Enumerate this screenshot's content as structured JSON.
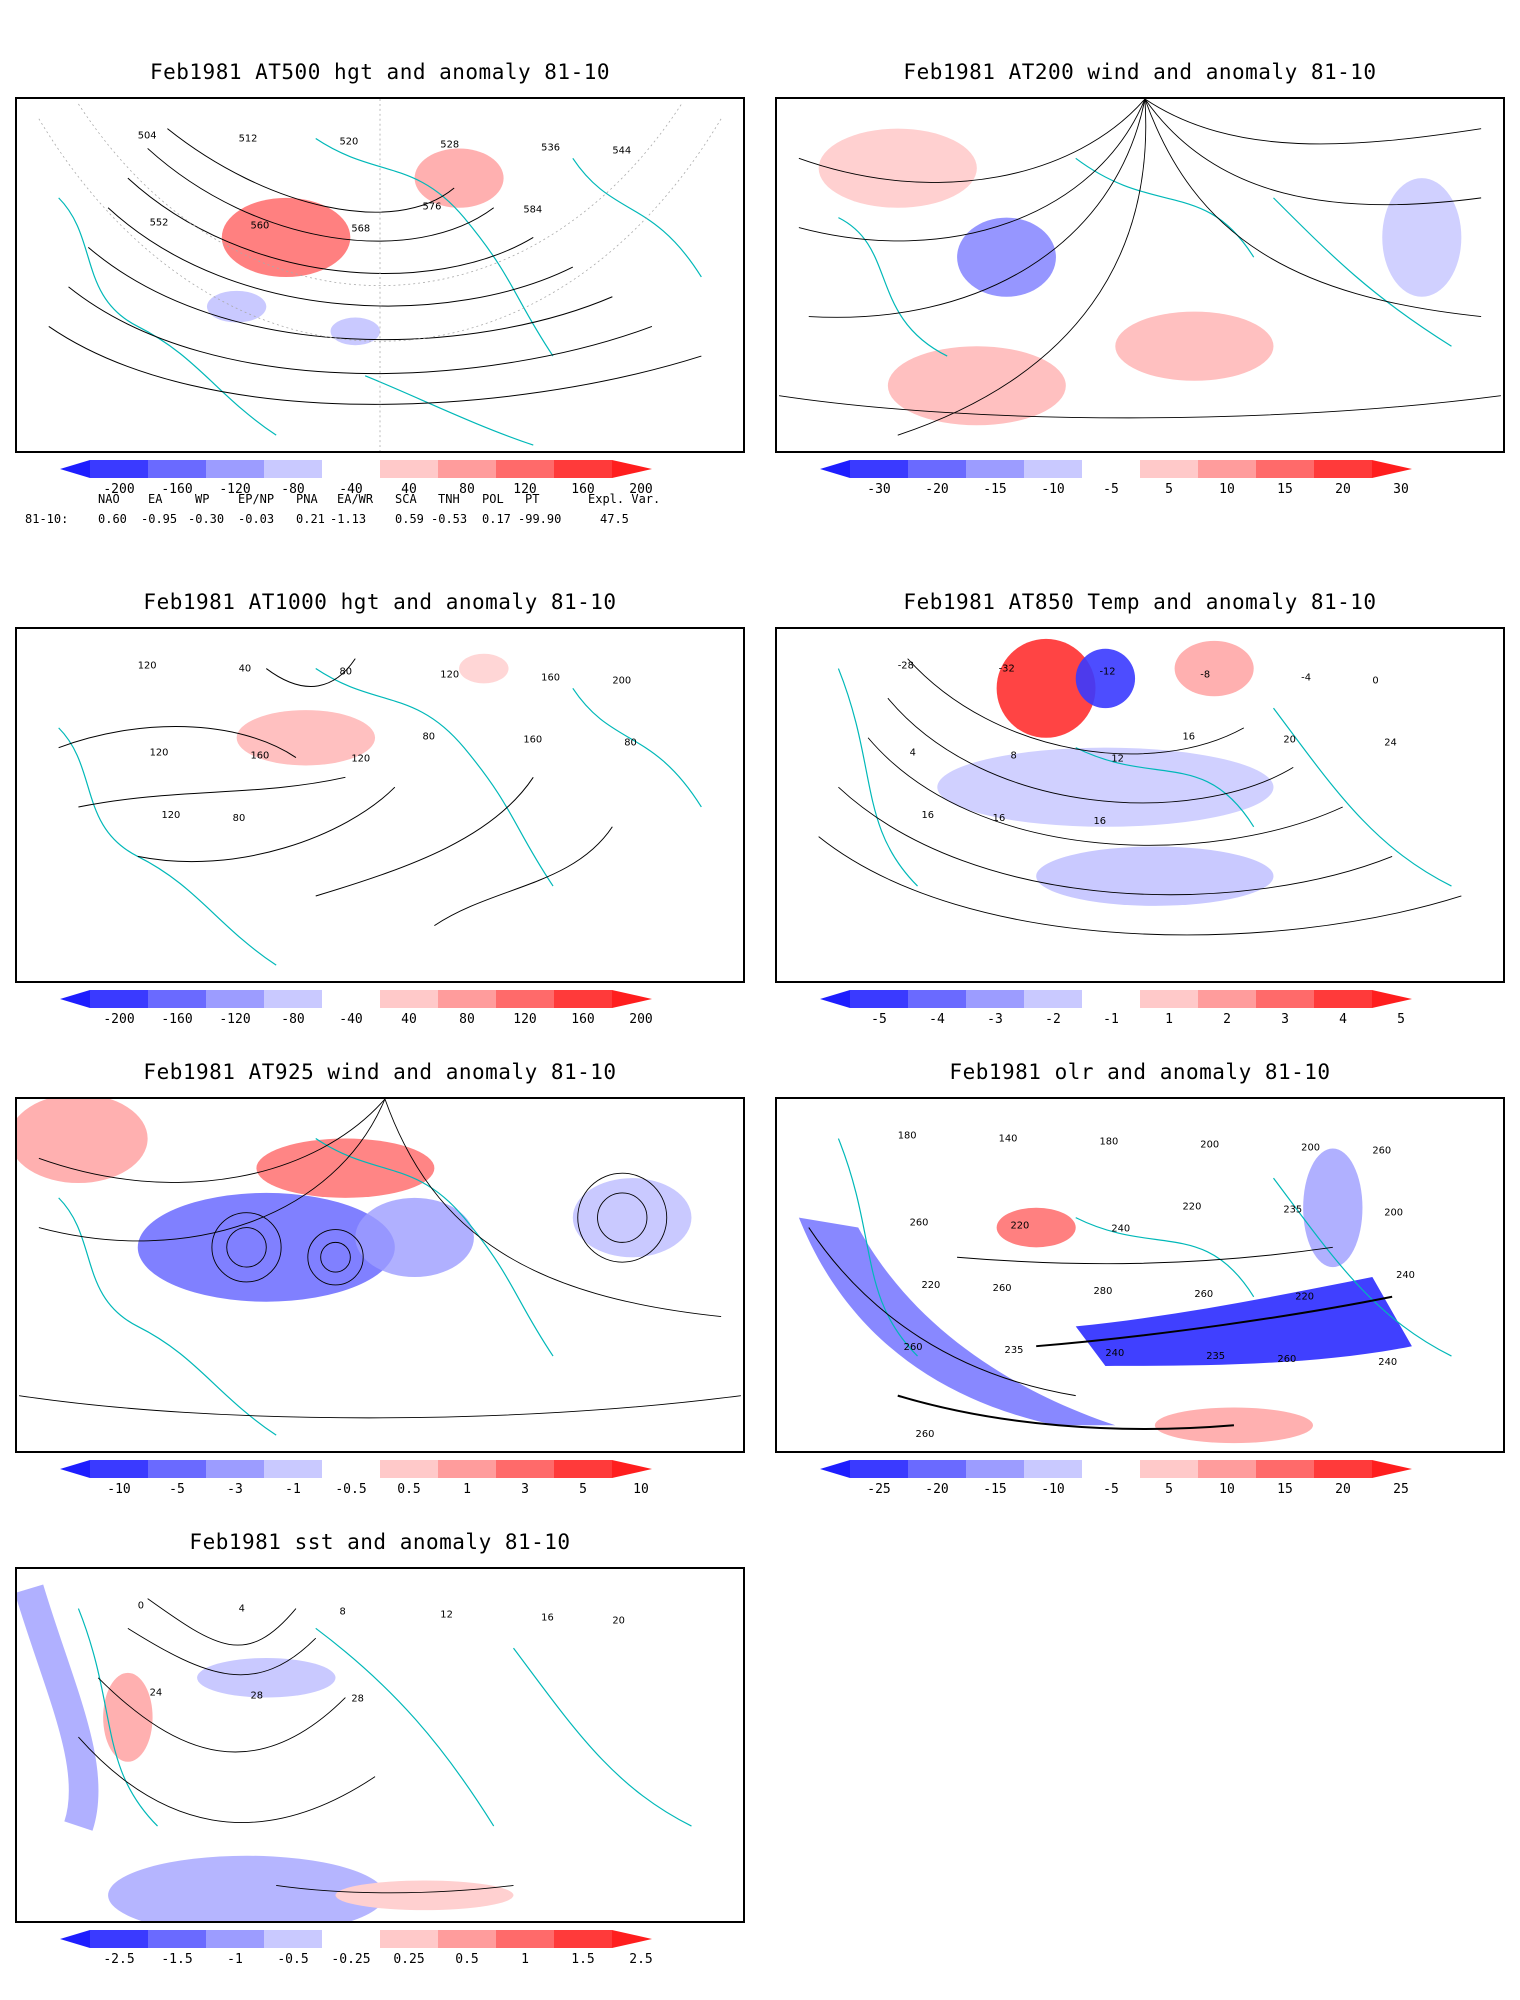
{
  "panels": [
    {
      "id": "p1",
      "title": "Feb1981 AT500 hgt and anomaly 81-10",
      "colorbar_ticks": [
        "-200",
        "-160",
        "-120",
        "-80",
        "-40",
        "40",
        "80",
        "120",
        "160",
        "200"
      ],
      "contour_labels": [
        "504",
        "512",
        "520",
        "528",
        "536",
        "544",
        "552",
        "560",
        "568",
        "576",
        "584"
      ],
      "anomaly_colors": {
        "blue_strong": "#3a3aff",
        "blue_light": "#b9b9ff",
        "red_light": "#ffb9b9",
        "red_strong": "#ff3a3a"
      }
    },
    {
      "id": "p2",
      "title": "Feb1981 AT200 wind and anomaly 81-10",
      "colorbar_ticks": [
        "-30",
        "-20",
        "-15",
        "-10",
        "-5",
        "5",
        "10",
        "15",
        "20",
        "30"
      ]
    },
    {
      "id": "p3",
      "title": "Feb1981 AT1000 hgt and anomaly 81-10",
      "colorbar_ticks": [
        "-200",
        "-160",
        "-120",
        "-80",
        "-40",
        "40",
        "80",
        "120",
        "160",
        "200"
      ],
      "contour_labels": [
        "120",
        "40",
        "80",
        "120",
        "160",
        "200",
        "120",
        "160",
        "120",
        "80",
        "160",
        "80",
        "120",
        "80"
      ]
    },
    {
      "id": "p4",
      "title": "Feb1981 AT850 Temp and anomaly 81-10",
      "colorbar_ticks": [
        "-5",
        "-4",
        "-3",
        "-2",
        "-1",
        "1",
        "2",
        "3",
        "4",
        "5"
      ],
      "contour_labels": [
        "-28",
        "-32",
        "-12",
        "-8",
        "-4",
        "0",
        "4",
        "8",
        "12",
        "16",
        "20",
        "24",
        "16",
        "16",
        "16"
      ]
    },
    {
      "id": "p5",
      "title": "Feb1981 AT925 wind and anomaly 81-10",
      "colorbar_ticks": [
        "-10",
        "-5",
        "-3",
        "-1",
        "-0.5",
        "0.5",
        "1",
        "3",
        "5",
        "10"
      ]
    },
    {
      "id": "p6",
      "title": "Feb1981 olr and anomaly 81-10",
      "colorbar_ticks": [
        "-25",
        "-20",
        "-15",
        "-10",
        "-5",
        "5",
        "10",
        "15",
        "20",
        "25"
      ],
      "contour_labels": [
        "180",
        "140",
        "180",
        "200",
        "200",
        "260",
        "260",
        "220",
        "240",
        "220",
        "235",
        "200",
        "220",
        "260",
        "280",
        "260",
        "220",
        "240",
        "260",
        "235",
        "240",
        "235",
        "260",
        "240",
        "260"
      ]
    },
    {
      "id": "p7",
      "title": "Feb1981 sst and anomaly 81-10",
      "colorbar_ticks": [
        "-2.5",
        "-1.5",
        "-1",
        "-0.5",
        "-0.25",
        "0.25",
        "0.5",
        "1",
        "1.5",
        "2.5"
      ],
      "contour_labels": [
        "0",
        "4",
        "8",
        "12",
        "16",
        "20",
        "24",
        "28",
        "28"
      ]
    }
  ],
  "index_table": {
    "headers": [
      "NAO",
      "EA",
      "WP",
      "EP/NP",
      "PNA",
      "EA/WR",
      "SCA",
      "TNH",
      "POL",
      "PT",
      "Expl. Var."
    ],
    "row_label": "81-10:",
    "values": [
      "0.60",
      "-0.95",
      "-0.30",
      "-0.03",
      "0.21",
      "-1.13",
      "0.59",
      "-0.53",
      "0.17",
      "-99.90",
      "47.5"
    ]
  }
}
